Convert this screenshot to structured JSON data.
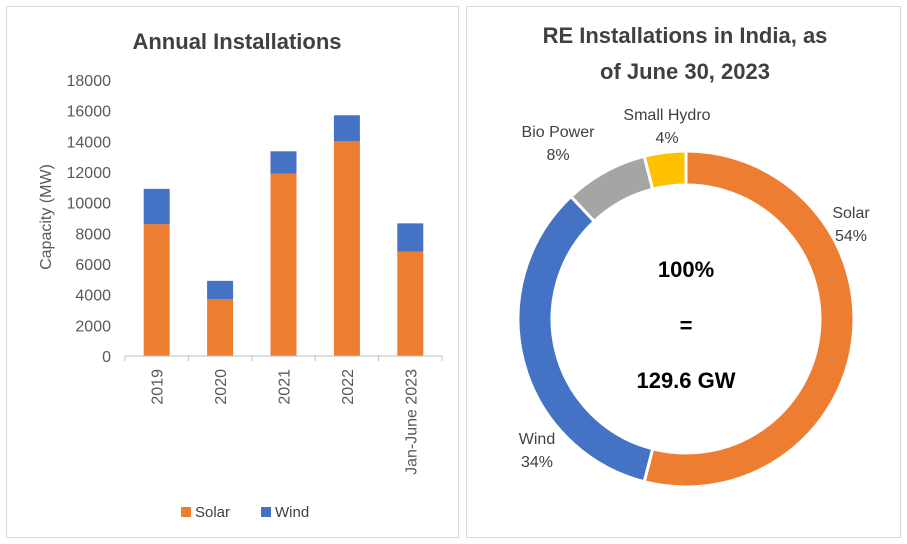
{
  "chart_data": [
    {
      "type": "bar",
      "stacked": true,
      "title": "Annual Installations",
      "ylabel": "Capacity (MW)",
      "xlabel": "",
      "ylim": [
        0,
        18000
      ],
      "yticks": [
        0,
        2000,
        4000,
        6000,
        8000,
        10000,
        12000,
        14000,
        16000,
        18000
      ],
      "grid": false,
      "legend_position": "bottom",
      "categories": [
        "2019",
        "2020",
        "2021",
        "2022",
        "Jan-June 2023"
      ],
      "series": [
        {
          "name": "Solar",
          "color": "#ED7D31",
          "values": [
            8600,
            3700,
            11900,
            14000,
            6800
          ]
        },
        {
          "name": "Wind",
          "color": "#4472C4",
          "values": [
            2300,
            1200,
            1450,
            1700,
            1850
          ]
        }
      ]
    },
    {
      "type": "pie",
      "donut": true,
      "title": "RE Installations in India, as of June 30, 2023",
      "title_lines": [
        "RE Installations in India, as",
        "of June 30, 2023"
      ],
      "center_text": [
        "100%",
        "=",
        "129.6 GW"
      ],
      "slices": [
        {
          "name": "Solar",
          "value": 54,
          "label": "54%",
          "color": "#ED7D31"
        },
        {
          "name": "Wind",
          "value": 34,
          "label": "34%",
          "color": "#4472C4"
        },
        {
          "name": "Bio Power",
          "value": 8,
          "label": "8%",
          "color": "#A5A5A5"
        },
        {
          "name": "Small Hydro",
          "value": 4,
          "label": "4%",
          "color": "#FFC000"
        }
      ]
    }
  ]
}
